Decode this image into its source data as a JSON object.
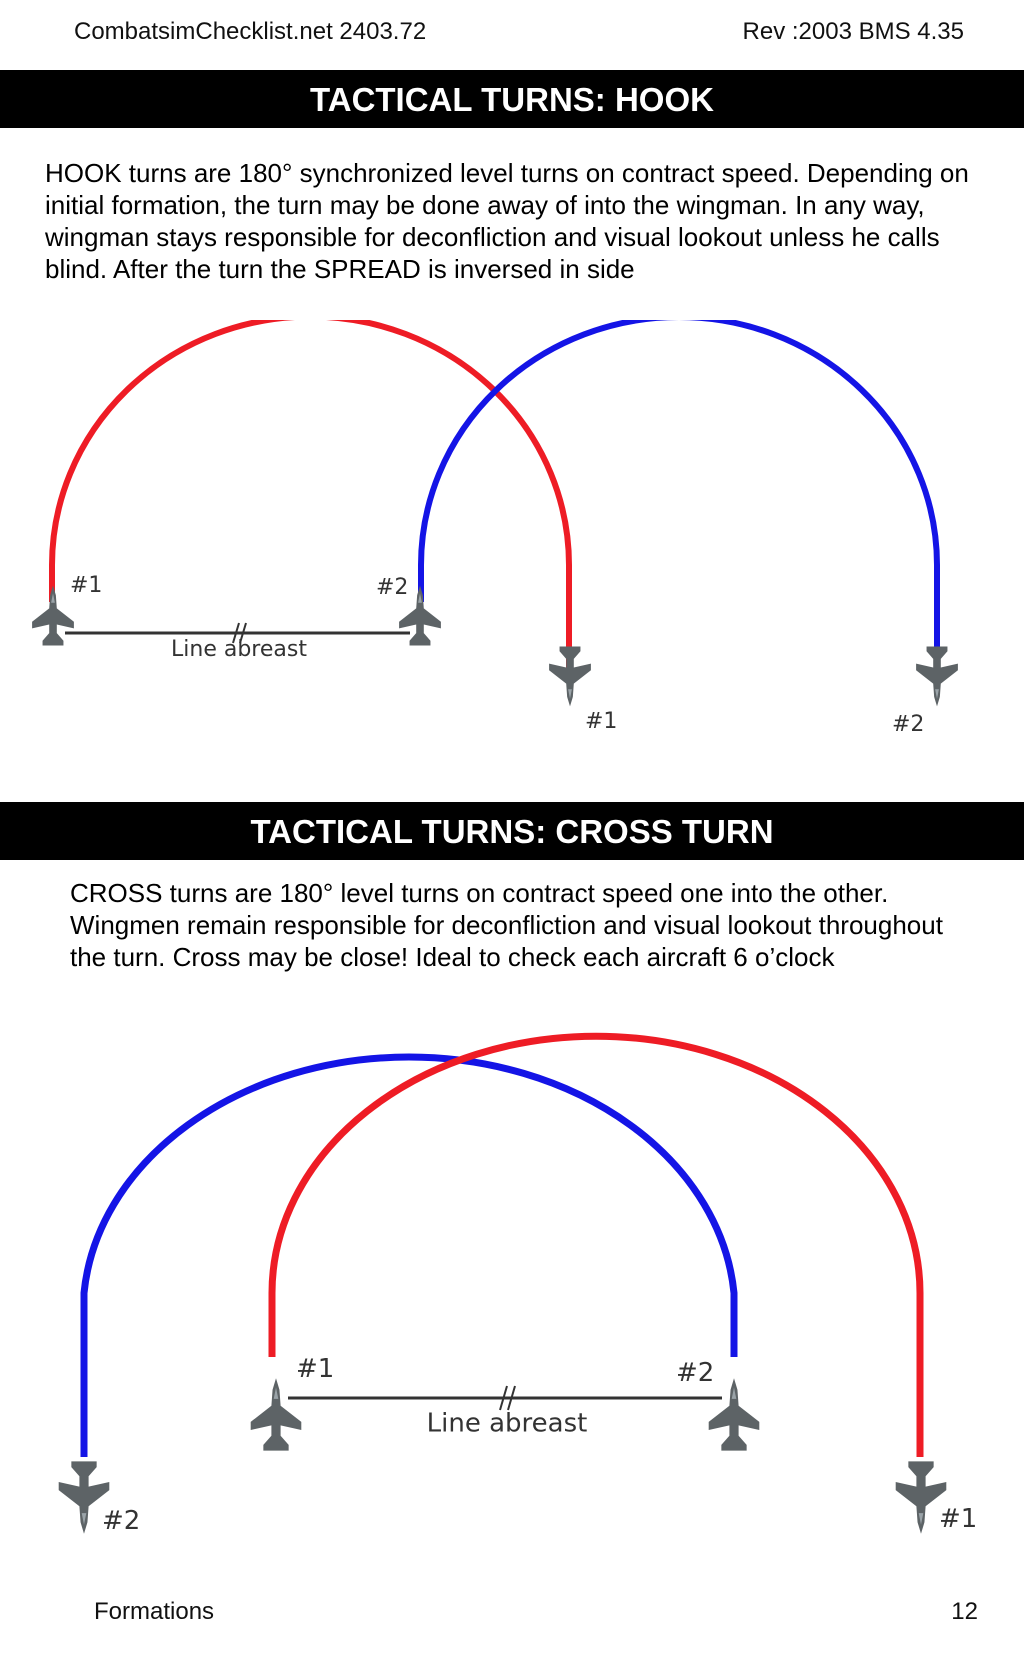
{
  "header": {
    "left": "CombatsimChecklist.net 2403.72",
    "right": "Rev :2003 BMS 4.35"
  },
  "hook": {
    "title": "TACTICAL TURNS: HOOK",
    "text": "HOOK turns are 180° synchronized level turns on contract speed. Depending on initial formation, the turn may be done away of into the wingman. In any way, wingman stays responsible for deconfliction and visual lookout unless he calls blind. After the turn the SPREAD is inversed in side",
    "diagram": {
      "start_label_1": "#1",
      "start_label_2": "#2",
      "line_label": "Line abreast",
      "end_label_1": "#1",
      "end_label_2": "#2",
      "colors": {
        "lead": "#ee1c25",
        "wing": "#1414e6"
      }
    }
  },
  "cross": {
    "title": "TACTICAL TURNS: CROSS TURN",
    "text": "CROSS turns are 180° level turns on contract speed one into the other. Wingmen remain responsible for deconfliction and visual lookout throughout the turn. Cross may be close!  Ideal to check each aircraft 6 o’clock",
    "diagram": {
      "start_label_1": "#1",
      "start_label_2": "#2",
      "line_label": "Line abreast",
      "end_label_2": "#2",
      "end_label_1": "#1",
      "colors": {
        "lead": "#ee1c25",
        "wing": "#1414e6"
      }
    }
  },
  "footer": {
    "left": "Formations",
    "right": "12"
  }
}
